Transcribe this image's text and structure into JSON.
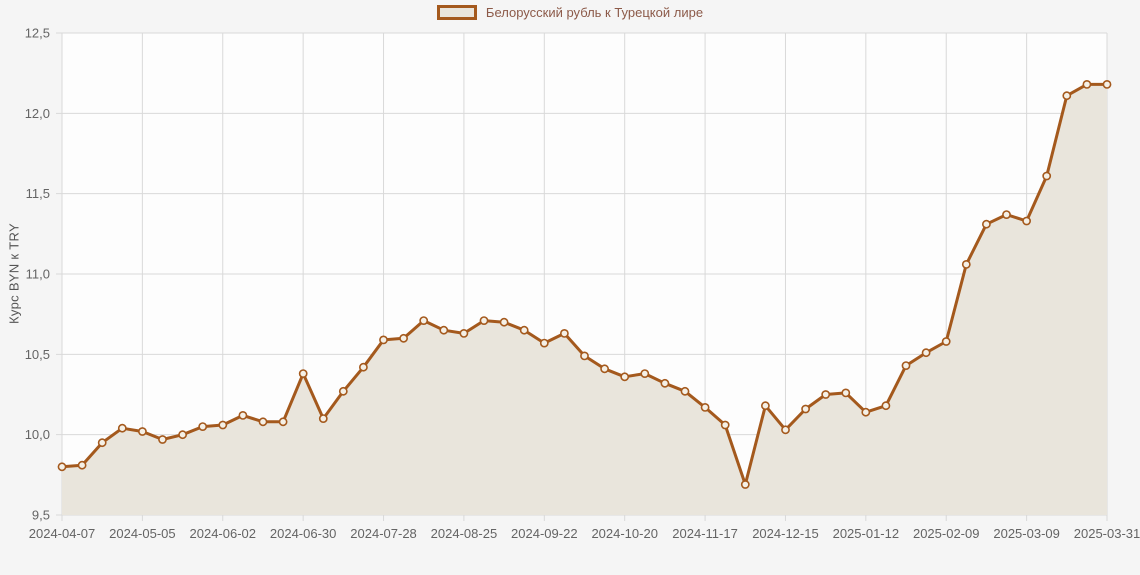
{
  "legend": {
    "label": "Белорусский рубль к Турецкой лире"
  },
  "chart_data": {
    "type": "area",
    "series_name": "Белорусский рубль к Турецкой лире",
    "ylabel": "Курс BYN к TRY",
    "ylim": [
      9.5,
      12.5
    ],
    "grid": true,
    "legend_position": "top-center",
    "y_ticks": [
      {
        "value": 9.5,
        "label": "9,5"
      },
      {
        "value": 10.0,
        "label": "10,0"
      },
      {
        "value": 10.5,
        "label": "10,5"
      },
      {
        "value": 11.0,
        "label": "11,0"
      },
      {
        "value": 11.5,
        "label": "11,5"
      },
      {
        "value": 12.0,
        "label": "12,0"
      },
      {
        "value": 12.5,
        "label": "12,5"
      }
    ],
    "x_ticks": [
      {
        "index": 0,
        "label": "2024-04-07"
      },
      {
        "index": 4,
        "label": "2024-05-05"
      },
      {
        "index": 8,
        "label": "2024-06-02"
      },
      {
        "index": 12,
        "label": "2024-06-30"
      },
      {
        "index": 16,
        "label": "2024-07-28"
      },
      {
        "index": 20,
        "label": "2024-08-25"
      },
      {
        "index": 24,
        "label": "2024-09-22"
      },
      {
        "index": 28,
        "label": "2024-10-20"
      },
      {
        "index": 32,
        "label": "2024-11-17"
      },
      {
        "index": 36,
        "label": "2024-12-15"
      },
      {
        "index": 40,
        "label": "2025-01-12"
      },
      {
        "index": 44,
        "label": "2025-02-09"
      },
      {
        "index": 48,
        "label": "2025-03-09"
      },
      {
        "index": 52,
        "label": "2025-03-31"
      }
    ],
    "values": [
      9.8,
      9.81,
      9.95,
      10.04,
      10.02,
      9.97,
      10.0,
      10.05,
      10.06,
      10.12,
      10.08,
      10.08,
      10.38,
      10.1,
      10.27,
      10.42,
      10.59,
      10.6,
      10.71,
      10.65,
      10.63,
      10.71,
      10.7,
      10.65,
      10.57,
      10.63,
      10.49,
      10.41,
      10.36,
      10.38,
      10.32,
      10.27,
      10.17,
      10.06,
      9.69,
      10.18,
      10.03,
      10.16,
      10.25,
      10.26,
      10.14,
      10.18,
      10.43,
      10.51,
      10.58,
      11.06,
      11.31,
      11.37,
      11.33,
      11.61,
      12.11,
      12.18,
      12.18
    ],
    "colors": {
      "line": "#a4591d",
      "area_fill": "#e9e5dc",
      "marker_fill": "#f5f0e6",
      "plot_background": "#fdfdfd",
      "page_background": "#f5f5f5",
      "grid": "#d9d9d9",
      "tick_text": "#646464",
      "legend_text": "#8c5a49"
    }
  }
}
